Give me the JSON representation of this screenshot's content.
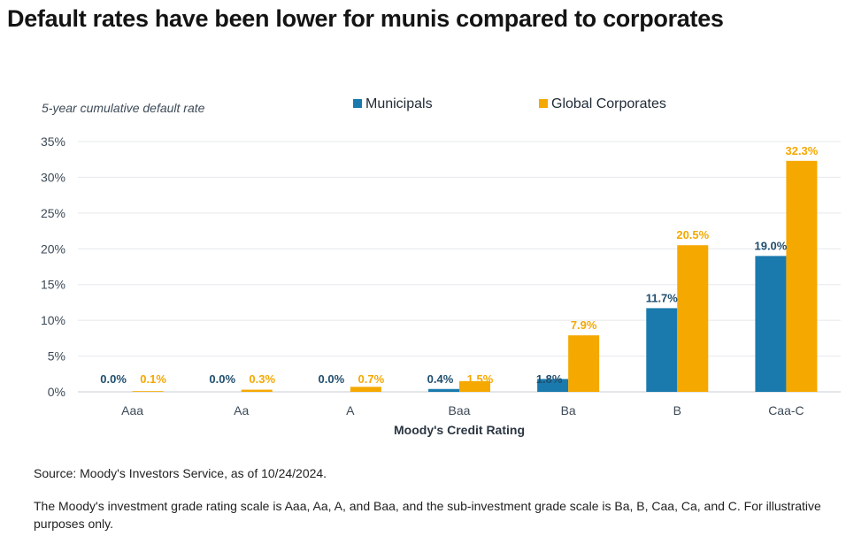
{
  "title": "Default rates have been lower for munis compared to corporates",
  "chart_data": {
    "type": "bar",
    "ylabel": "5-year cumulative default rate",
    "xlabel": "Moody's Credit Rating",
    "categories": [
      "Aaa",
      "Aa",
      "A",
      "Baa",
      "Ba",
      "B",
      "Caa-C"
    ],
    "series": [
      {
        "name": "Municipals",
        "color": "#1a7aad",
        "values": [
          0.0,
          0.0,
          0.0,
          0.4,
          1.8,
          11.7,
          19.0
        ],
        "labels": [
          "0.0%",
          "0.0%",
          "0.0%",
          "0.4%",
          "1.8%",
          "11.7%",
          "19.0%"
        ]
      },
      {
        "name": "Global Corporates",
        "color": "#f5a800",
        "values": [
          0.1,
          0.3,
          0.7,
          1.5,
          7.9,
          20.5,
          32.3
        ],
        "labels": [
          "0.1%",
          "0.3%",
          "0.7%",
          "1.5%",
          "7.9%",
          "20.5%",
          "32.3%"
        ]
      }
    ],
    "ylim": [
      0,
      35
    ],
    "yticks": [
      0,
      5,
      10,
      15,
      20,
      25,
      30,
      35
    ],
    "ytick_labels": [
      "0%",
      "5%",
      "10%",
      "15%",
      "20%",
      "25%",
      "30%",
      "35%"
    ],
    "grid": true,
    "legend": "top-center"
  },
  "footnotes": {
    "source": "Source: Moody's Investors Service, as of 10/24/2024.",
    "rating_scale": "The Moody's investment grade rating scale is Aaa, Aa, A, and Baa, and the sub-investment grade scale is Ba, B, Caa, Ca, and C. For illustrative purposes only."
  }
}
